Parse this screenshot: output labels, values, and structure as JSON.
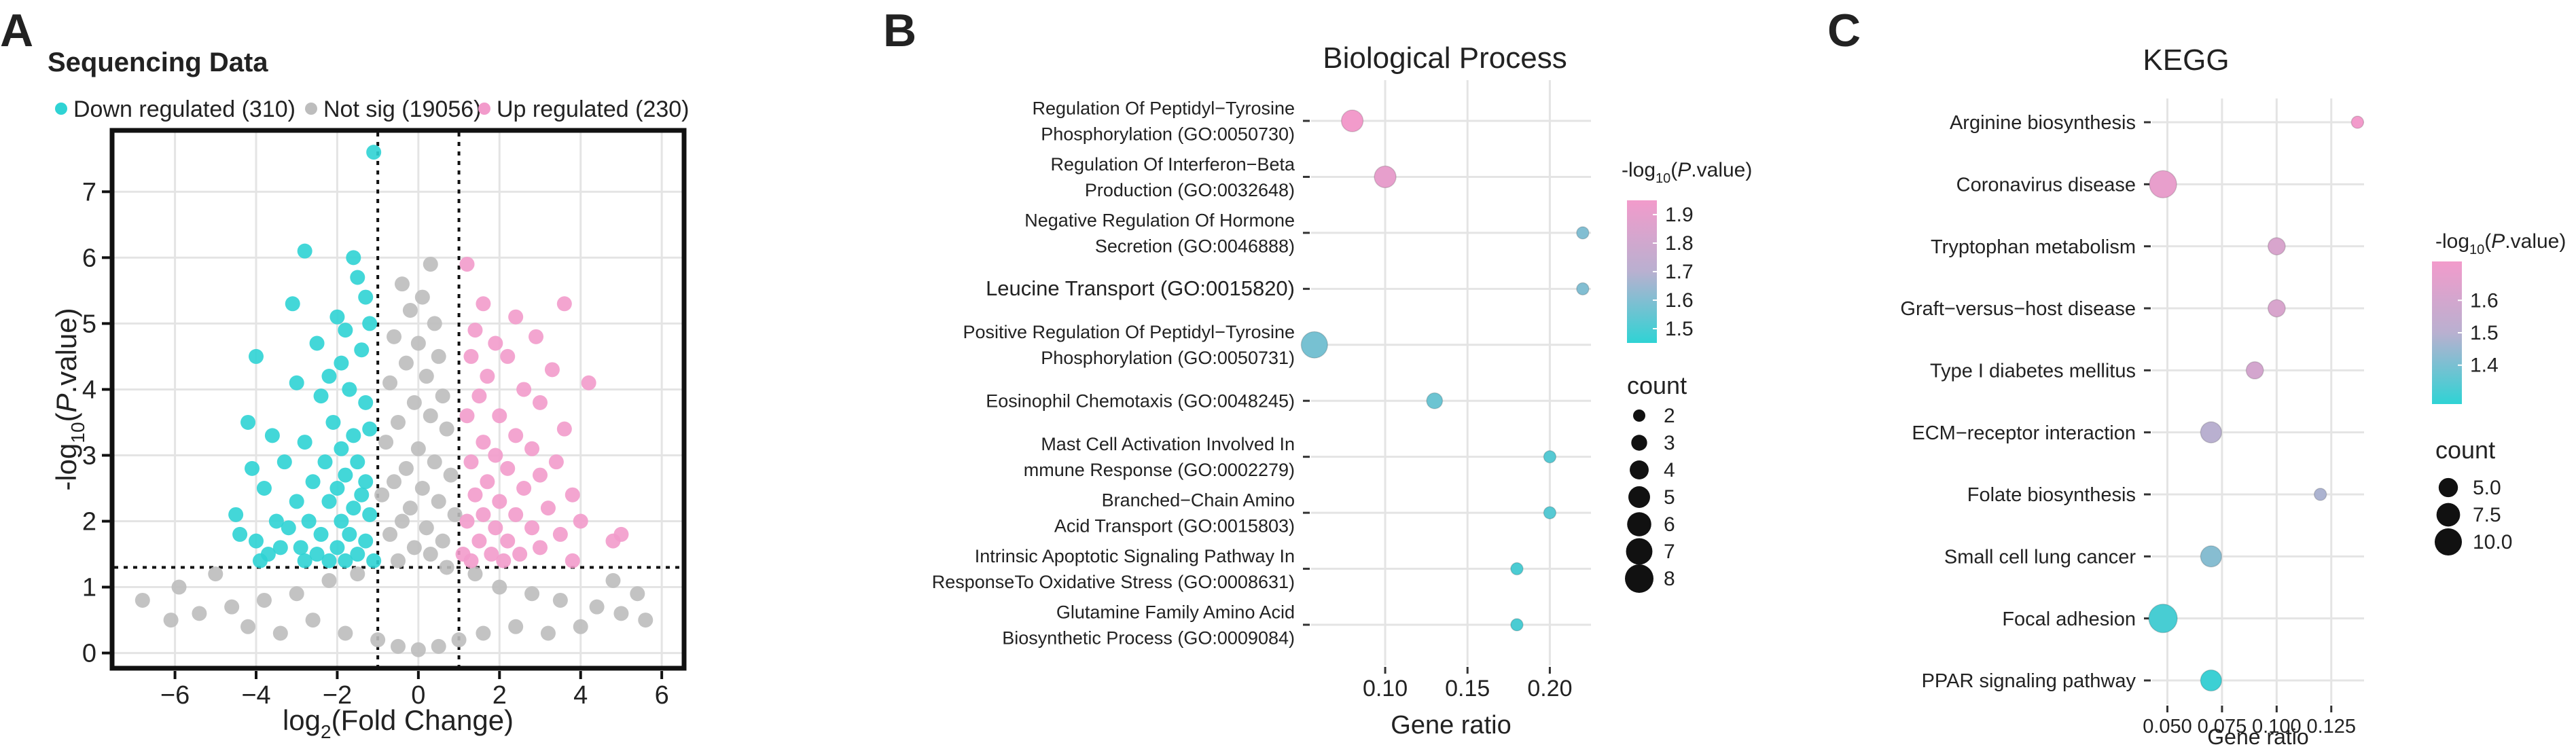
{
  "panel_labels": [
    "A",
    "B",
    "C"
  ],
  "colors": {
    "down": "#2fd3d4",
    "notsig": "#bdbdbd",
    "up": "#f29bcb",
    "grid": "#e4e4e4",
    "frame": "#222222",
    "grad_high": "#f29bcb",
    "grad_mid": "#b9b0d0",
    "grad_low": "#2fd3d4"
  },
  "chart_data": [
    {
      "type": "scatter",
      "panel": "A",
      "title": "Sequencing Data",
      "xlabel": "log2(Fold Change)",
      "ylabel": "-log10(P.value)",
      "xlim": [
        -7.5,
        6.5
      ],
      "ylim": [
        -0.2,
        7.9
      ],
      "xticks": [
        -6,
        -4,
        -2,
        0,
        2,
        4,
        6
      ],
      "yticks": [
        0,
        1,
        2,
        3,
        4,
        5,
        6,
        7
      ],
      "thresholds": {
        "x": [
          -1,
          1
        ],
        "y": 1.3
      },
      "legend": [
        {
          "key": "down",
          "label": "Down regulated (310)"
        },
        {
          "key": "notsig",
          "label": "Not sig (19056)"
        },
        {
          "key": "up",
          "label": "Up regulated (230)"
        }
      ],
      "series": [
        {
          "name": "Down regulated",
          "count": 310,
          "points": [
            [
              -1.1,
              7.6
            ],
            [
              -2.8,
              6.1
            ],
            [
              -1.6,
              6.0
            ],
            [
              -1.5,
              5.7
            ],
            [
              -1.3,
              5.4
            ],
            [
              -3.1,
              5.3
            ],
            [
              -2.0,
              5.1
            ],
            [
              -1.8,
              4.9
            ],
            [
              -1.2,
              5.0
            ],
            [
              -2.5,
              4.7
            ],
            [
              -4.0,
              4.5
            ],
            [
              -1.9,
              4.4
            ],
            [
              -1.4,
              4.6
            ],
            [
              -2.2,
              4.2
            ],
            [
              -3.0,
              4.1
            ],
            [
              -1.7,
              4.0
            ],
            [
              -2.4,
              3.9
            ],
            [
              -4.2,
              3.5
            ],
            [
              -1.3,
              3.8
            ],
            [
              -3.6,
              3.3
            ],
            [
              -2.1,
              3.5
            ],
            [
              -1.6,
              3.3
            ],
            [
              -2.8,
              3.2
            ],
            [
              -1.2,
              3.4
            ],
            [
              -1.9,
              3.1
            ],
            [
              -3.3,
              2.9
            ],
            [
              -2.3,
              2.9
            ],
            [
              -1.5,
              2.9
            ],
            [
              -4.1,
              2.8
            ],
            [
              -1.8,
              2.7
            ],
            [
              -2.6,
              2.6
            ],
            [
              -1.3,
              2.6
            ],
            [
              -3.8,
              2.5
            ],
            [
              -2.0,
              2.5
            ],
            [
              -1.4,
              2.4
            ],
            [
              -3.0,
              2.3
            ],
            [
              -2.2,
              2.3
            ],
            [
              -1.6,
              2.2
            ],
            [
              -4.5,
              2.1
            ],
            [
              -3.5,
              2.0
            ],
            [
              -2.7,
              2.0
            ],
            [
              -1.9,
              2.0
            ],
            [
              -1.2,
              2.1
            ],
            [
              -3.2,
              1.9
            ],
            [
              -2.4,
              1.8
            ],
            [
              -1.7,
              1.8
            ],
            [
              -4.0,
              1.7
            ],
            [
              -3.4,
              1.6
            ],
            [
              -2.9,
              1.6
            ],
            [
              -2.0,
              1.6
            ],
            [
              -1.3,
              1.7
            ],
            [
              -3.7,
              1.5
            ],
            [
              -2.5,
              1.5
            ],
            [
              -1.5,
              1.5
            ],
            [
              -2.2,
              1.4
            ],
            [
              -1.1,
              1.4
            ],
            [
              -4.4,
              1.8
            ],
            [
              -3.9,
              1.4
            ],
            [
              -2.8,
              1.4
            ],
            [
              -1.8,
              1.4
            ]
          ]
        },
        {
          "name": "Not sig",
          "count": 19056,
          "points": [
            [
              0.3,
              5.9
            ],
            [
              -0.4,
              5.6
            ],
            [
              0.1,
              5.4
            ],
            [
              -0.2,
              5.2
            ],
            [
              0.4,
              5.0
            ],
            [
              -0.6,
              4.8
            ],
            [
              0.0,
              4.7
            ],
            [
              0.5,
              4.5
            ],
            [
              -0.3,
              4.4
            ],
            [
              0.2,
              4.2
            ],
            [
              -0.7,
              4.1
            ],
            [
              0.6,
              3.9
            ],
            [
              -0.1,
              3.8
            ],
            [
              0.3,
              3.6
            ],
            [
              -0.5,
              3.5
            ],
            [
              0.7,
              3.4
            ],
            [
              -0.8,
              3.2
            ],
            [
              0.0,
              3.1
            ],
            [
              0.4,
              2.9
            ],
            [
              -0.3,
              2.8
            ],
            [
              0.8,
              2.7
            ],
            [
              -0.6,
              2.6
            ],
            [
              0.1,
              2.5
            ],
            [
              -0.9,
              2.4
            ],
            [
              0.5,
              2.3
            ],
            [
              -0.2,
              2.2
            ],
            [
              0.9,
              2.1
            ],
            [
              -0.4,
              2.0
            ],
            [
              0.2,
              1.9
            ],
            [
              -0.7,
              1.8
            ],
            [
              0.6,
              1.7
            ],
            [
              -0.1,
              1.6
            ],
            [
              0.3,
              1.5
            ],
            [
              -0.5,
              1.4
            ],
            [
              0.7,
              1.3
            ],
            [
              -1.5,
              1.2
            ],
            [
              1.4,
              1.2
            ],
            [
              -2.2,
              1.1
            ],
            [
              2.0,
              1.0
            ],
            [
              -3.0,
              0.9
            ],
            [
              2.8,
              0.9
            ],
            [
              -3.8,
              0.8
            ],
            [
              3.5,
              0.8
            ],
            [
              -4.6,
              0.7
            ],
            [
              4.4,
              0.7
            ],
            [
              -5.4,
              0.6
            ],
            [
              5.0,
              0.6
            ],
            [
              -6.1,
              0.5
            ],
            [
              5.6,
              0.5
            ],
            [
              -6.8,
              0.8
            ],
            [
              -5.9,
              1.0
            ],
            [
              -5.0,
              1.2
            ],
            [
              4.8,
              1.1
            ],
            [
              5.4,
              0.9
            ],
            [
              -2.6,
              0.5
            ],
            [
              2.4,
              0.4
            ],
            [
              -1.8,
              0.3
            ],
            [
              1.6,
              0.3
            ],
            [
              -1.0,
              0.2
            ],
            [
              1.0,
              0.2
            ],
            [
              -0.5,
              0.1
            ],
            [
              0.5,
              0.1
            ],
            [
              0.0,
              0.05
            ],
            [
              -3.4,
              0.3
            ],
            [
              3.2,
              0.3
            ],
            [
              -4.2,
              0.4
            ],
            [
              4.0,
              0.4
            ]
          ]
        },
        {
          "name": "Up regulated",
          "count": 230,
          "points": [
            [
              1.2,
              5.9
            ],
            [
              1.6,
              5.3
            ],
            [
              3.6,
              5.3
            ],
            [
              2.4,
              5.1
            ],
            [
              1.4,
              4.9
            ],
            [
              2.9,
              4.8
            ],
            [
              1.9,
              4.7
            ],
            [
              2.2,
              4.5
            ],
            [
              1.3,
              4.5
            ],
            [
              3.3,
              4.3
            ],
            [
              4.2,
              4.1
            ],
            [
              1.7,
              4.2
            ],
            [
              2.6,
              4.0
            ],
            [
              1.5,
              3.9
            ],
            [
              3.0,
              3.8
            ],
            [
              2.0,
              3.6
            ],
            [
              1.2,
              3.6
            ],
            [
              3.6,
              3.4
            ],
            [
              2.4,
              3.3
            ],
            [
              1.6,
              3.2
            ],
            [
              2.8,
              3.1
            ],
            [
              1.9,
              3.0
            ],
            [
              3.4,
              2.9
            ],
            [
              1.3,
              2.9
            ],
            [
              2.2,
              2.8
            ],
            [
              3.0,
              2.7
            ],
            [
              1.7,
              2.6
            ],
            [
              2.6,
              2.5
            ],
            [
              3.8,
              2.4
            ],
            [
              1.4,
              2.4
            ],
            [
              2.0,
              2.3
            ],
            [
              3.2,
              2.2
            ],
            [
              2.4,
              2.1
            ],
            [
              1.6,
              2.1
            ],
            [
              4.0,
              2.0
            ],
            [
              2.8,
              1.9
            ],
            [
              1.9,
              1.9
            ],
            [
              1.2,
              2.0
            ],
            [
              3.5,
              1.8
            ],
            [
              2.2,
              1.7
            ],
            [
              1.5,
              1.7
            ],
            [
              4.8,
              1.7
            ],
            [
              5.0,
              1.8
            ],
            [
              3.0,
              1.6
            ],
            [
              2.5,
              1.5
            ],
            [
              1.8,
              1.5
            ],
            [
              1.3,
              1.4
            ],
            [
              3.8,
              1.4
            ],
            [
              2.1,
              1.4
            ],
            [
              1.1,
              1.5
            ]
          ]
        }
      ]
    },
    {
      "type": "scatter",
      "panel": "B",
      "title": "Biological Process",
      "xlabel": "Gene ratio",
      "xlim": [
        0.055,
        0.225
      ],
      "xticks": [
        0.1,
        0.15,
        0.2
      ],
      "xtick_labels": [
        "0.10",
        "0.15",
        "0.20"
      ],
      "color_legend_title": "-log10(P.value)",
      "color_range": [
        1.45,
        1.95
      ],
      "color_ticks": [
        "1.9",
        "1.8",
        "1.7",
        "1.6",
        "1.5"
      ],
      "size_legend_title": "count",
      "size_legend_values": [
        "2",
        "3",
        "4",
        "5",
        "6",
        "7",
        "8"
      ],
      "terms": [
        {
          "lines": [
            "Regulation Of Peptidyl−Tyrosine",
            "Phosphorylation (GO:0050730)"
          ],
          "gene_ratio": 0.08,
          "count": 5,
          "neglog10p": 1.95
        },
        {
          "lines": [
            "Regulation Of Interferon−Beta",
            "Production (GO:0032648)"
          ],
          "gene_ratio": 0.1,
          "count": 5,
          "neglog10p": 1.9
        },
        {
          "lines": [
            "Negative Regulation Of Hormone",
            "Secretion (GO:0046888)"
          ],
          "gene_ratio": 0.22,
          "count": 2,
          "neglog10p": 1.6
        },
        {
          "lines": [
            "Leucine Transport (GO:0015820)"
          ],
          "gene_ratio": 0.22,
          "count": 2,
          "neglog10p": 1.6
        },
        {
          "lines": [
            "Positive Regulation Of Peptidyl−Tyrosine",
            "Phosphorylation (GO:0050731)"
          ],
          "gene_ratio": 0.057,
          "count": 7,
          "neglog10p": 1.58
        },
        {
          "lines": [
            "Eosinophil Chemotaxis (GO:0048245)"
          ],
          "gene_ratio": 0.13,
          "count": 3,
          "neglog10p": 1.56
        },
        {
          "lines": [
            "Mast Cell Activation Involved In",
            "mmune Response (GO:0002279)"
          ],
          "gene_ratio": 0.2,
          "count": 2,
          "neglog10p": 1.52
        },
        {
          "lines": [
            "Branched−Chain Amino",
            "Acid Transport (GO:0015803)"
          ],
          "gene_ratio": 0.2,
          "count": 2,
          "neglog10p": 1.52
        },
        {
          "lines": [
            "Intrinsic Apoptotic Signaling Pathway In",
            "ResponseTo Oxidative Stress (GO:0008631)"
          ],
          "gene_ratio": 0.18,
          "count": 2,
          "neglog10p": 1.5
        },
        {
          "lines": [
            "Glutamine Family Amino Acid",
            "Biosynthetic Process (GO:0009084)"
          ],
          "gene_ratio": 0.18,
          "count": 2,
          "neglog10p": 1.5
        }
      ]
    },
    {
      "type": "scatter",
      "panel": "C",
      "title": "KEGG",
      "xlabel": "Gene ratio",
      "xlim": [
        0.043,
        0.14
      ],
      "xticks": [
        0.05,
        0.075,
        0.1,
        0.125
      ],
      "xtick_labels": [
        "0.050",
        "0.075",
        "0.100",
        "0.125"
      ],
      "color_legend_title": "-log10(P.value)",
      "color_range": [
        1.28,
        1.72
      ],
      "color_ticks": [
        "1.6",
        "1.5",
        "1.4"
      ],
      "size_legend_title": "count",
      "size_legend_values": [
        "5.0",
        "7.5",
        "10.0"
      ],
      "terms": [
        {
          "label": "Arginine biosynthesis",
          "gene_ratio": 0.137,
          "count": 2,
          "neglog10p": 1.72
        },
        {
          "label": "Coronavirus disease",
          "gene_ratio": 0.048,
          "count": 10,
          "neglog10p": 1.68
        },
        {
          "label": "Tryptophan metabolism",
          "gene_ratio": 0.1,
          "count": 4,
          "neglog10p": 1.62
        },
        {
          "label": "Graft−versus−host disease",
          "gene_ratio": 0.1,
          "count": 4,
          "neglog10p": 1.62
        },
        {
          "label": "Type I diabetes mellitus",
          "gene_ratio": 0.09,
          "count": 4,
          "neglog10p": 1.6
        },
        {
          "label": "ECM−receptor interaction",
          "gene_ratio": 0.07,
          "count": 6,
          "neglog10p": 1.5
        },
        {
          "label": "Folate biosynthesis",
          "gene_ratio": 0.12,
          "count": 2,
          "neglog10p": 1.48
        },
        {
          "label": "Small cell lung cancer",
          "gene_ratio": 0.07,
          "count": 6,
          "neglog10p": 1.42
        },
        {
          "label": "Focal adhesion",
          "gene_ratio": 0.048,
          "count": 11,
          "neglog10p": 1.32
        },
        {
          "label": "PPAR signaling pathway",
          "gene_ratio": 0.07,
          "count": 6,
          "neglog10p": 1.3
        }
      ]
    }
  ]
}
